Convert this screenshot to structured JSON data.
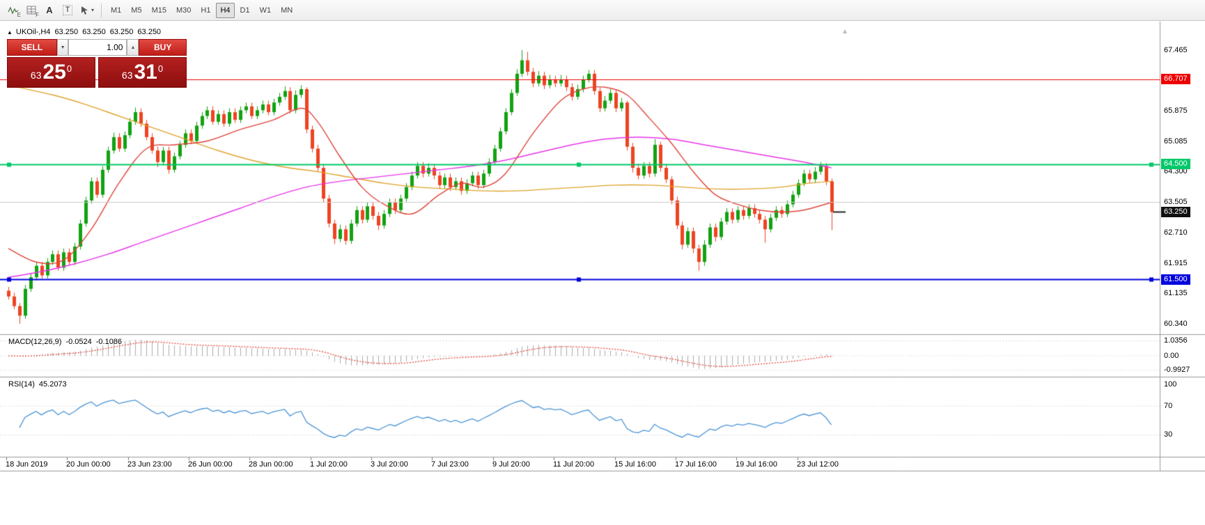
{
  "toolbar": {
    "timeframes": [
      "M1",
      "M5",
      "M15",
      "M30",
      "H1",
      "H4",
      "D1",
      "W1",
      "MN"
    ],
    "active_timeframe": "H4",
    "icon_labels": {
      "indicators_sub": "E",
      "grid_sub": "F",
      "text_a": "A",
      "text_t": "T",
      "cursor_caret": "▾"
    }
  },
  "chart_header": {
    "toggle_glyph": "▲",
    "symbol": "UKOil-,H4",
    "open": "63.250",
    "high": "63.250",
    "low": "63.250",
    "close": "63.250"
  },
  "trade_panel": {
    "sell_label": "SELL",
    "buy_label": "BUY",
    "volume": "1.00",
    "down_glyph": "▼",
    "up_glyph": "▲",
    "bid": {
      "prefix": "63",
      "big": "25",
      "pip": "0"
    },
    "ask": {
      "prefix": "63",
      "big": "31",
      "pip": "0"
    }
  },
  "price_axis": {
    "ticks": [
      67.465,
      65.875,
      65.085,
      64.3,
      63.505,
      62.71,
      61.915,
      61.135,
      60.34
    ],
    "tick_labels": [
      "67.465",
      "65.875",
      "65.085",
      "64.300",
      "63.505",
      "62.710",
      "61.915",
      "61.135",
      "60.340"
    ]
  },
  "levels": [
    {
      "price": 66.707,
      "label": "66.707",
      "color": "#EE0000",
      "width": 1,
      "badge": true,
      "handles": false
    },
    {
      "price": 64.5,
      "label": "64.500",
      "color": "#00C868",
      "width": 2,
      "badge": true,
      "handles": true
    },
    {
      "price": 63.505,
      "label": "",
      "color": "#CCCCCC",
      "width": 1,
      "badge": false,
      "handles": false
    },
    {
      "price": 61.5,
      "label": "61.500",
      "color": "#0000DD",
      "width": 2,
      "badge": true,
      "handles": true
    }
  ],
  "current_price": {
    "price": 63.25,
    "label": "63.250",
    "badge_color": "#111111"
  },
  "indicators": {
    "macd": {
      "label": "MACD(12,26,9)",
      "value": "-0.0524",
      "signal_value": "-0.1086",
      "fast": 12,
      "slow": 26,
      "signal": 9,
      "axis": {
        "values": [
          1.0356,
          0,
          -0.9927
        ],
        "labels": [
          "1.0356",
          "0.00",
          "-0.9927"
        ]
      },
      "hist_color": "#ACACAC",
      "signal_color": "#E23A2E"
    },
    "rsi": {
      "label": "RSI(14)",
      "value": "45.2073",
      "period": 14,
      "levels": [
        70,
        30
      ],
      "axis": {
        "values": [
          100,
          70,
          30
        ],
        "labels": [
          "100",
          "70",
          "30"
        ]
      },
      "line_color": "#4A94D6"
    }
  },
  "colors": {
    "candle_up": "#12A212",
    "candle_down": "#EE4422",
    "panel_border": "#9A9A9A",
    "grid_dotted": "#C4C4C4",
    "current_dash": "#222222",
    "autoscroll_marker": "#B8B8B8"
  },
  "chart_data": {
    "type": "candlestick",
    "symbol": "UKOil-",
    "timeframe": "H4",
    "ylim": [
      60.34,
      67.465
    ],
    "x_labels": [
      "18 Jun 2019",
      "20 Jun 00:00",
      "23 Jun 23:00",
      "26 Jun 00:00",
      "28 Jun 00:00",
      "1 Jul 20:00",
      "3 Jul 20:00",
      "7 Jul 23:00",
      "9 Jul 20:00",
      "11 Jul 20:00",
      "15 Jul 16:00",
      "17 Jul 16:00",
      "19 Jul 16:00",
      "23 Jul 12:00"
    ],
    "candles": [
      [
        61.2,
        61.3,
        60.97,
        61.05
      ],
      [
        61.05,
        61.15,
        60.72,
        60.8
      ],
      [
        60.8,
        60.88,
        60.34,
        60.55
      ],
      [
        60.55,
        61.35,
        60.47,
        61.25
      ],
      [
        61.25,
        61.65,
        61.17,
        61.55
      ],
      [
        61.55,
        61.95,
        61.47,
        61.85
      ],
      [
        61.85,
        61.95,
        61.52,
        61.6
      ],
      [
        61.6,
        62.05,
        61.52,
        61.95
      ],
      [
        61.95,
        62.25,
        61.87,
        62.15
      ],
      [
        62.15,
        62.25,
        61.72,
        61.8
      ],
      [
        61.8,
        62.3,
        61.72,
        62.2
      ],
      [
        62.2,
        62.3,
        61.87,
        61.95
      ],
      [
        61.95,
        62.45,
        61.87,
        62.35
      ],
      [
        62.35,
        63.05,
        62.27,
        62.95
      ],
      [
        62.95,
        63.65,
        62.87,
        63.55
      ],
      [
        63.55,
        64.15,
        63.47,
        64.05
      ],
      [
        64.05,
        64.15,
        63.62,
        63.7
      ],
      [
        63.7,
        64.45,
        63.62,
        64.35
      ],
      [
        64.35,
        64.95,
        64.27,
        64.85
      ],
      [
        64.85,
        65.32,
        64.77,
        65.2
      ],
      [
        65.2,
        65.3,
        64.82,
        64.9
      ],
      [
        64.9,
        65.35,
        64.82,
        65.25
      ],
      [
        65.25,
        65.7,
        65.17,
        65.6
      ],
      [
        65.6,
        65.97,
        65.52,
        65.85
      ],
      [
        65.85,
        65.95,
        65.47,
        65.55
      ],
      [
        65.55,
        65.65,
        65.12,
        65.2
      ],
      [
        65.2,
        65.3,
        64.77,
        64.85
      ],
      [
        64.85,
        64.95,
        64.42,
        64.55
      ],
      [
        64.55,
        64.95,
        64.47,
        64.85
      ],
      [
        64.85,
        64.95,
        64.25,
        64.35
      ],
      [
        64.35,
        64.8,
        64.27,
        64.7
      ],
      [
        64.7,
        65.1,
        64.62,
        65.0
      ],
      [
        65.0,
        65.4,
        64.92,
        65.3
      ],
      [
        65.3,
        65.4,
        65.02,
        65.1
      ],
      [
        65.1,
        65.6,
        65.02,
        65.5
      ],
      [
        65.5,
        65.85,
        65.42,
        65.75
      ],
      [
        65.75,
        66.0,
        65.67,
        65.9
      ],
      [
        65.9,
        66.0,
        65.52,
        65.6
      ],
      [
        65.6,
        65.9,
        65.52,
        65.8
      ],
      [
        65.8,
        65.9,
        65.47,
        65.55
      ],
      [
        65.55,
        65.95,
        65.47,
        65.85
      ],
      [
        65.85,
        65.95,
        65.57,
        65.65
      ],
      [
        65.65,
        66.0,
        65.57,
        65.9
      ],
      [
        65.9,
        66.1,
        65.82,
        66.0
      ],
      [
        66.0,
        66.1,
        65.67,
        65.75
      ],
      [
        65.75,
        66.0,
        65.67,
        65.9
      ],
      [
        65.9,
        66.15,
        65.82,
        66.05
      ],
      [
        66.05,
        66.15,
        65.77,
        65.85
      ],
      [
        65.85,
        66.2,
        65.77,
        66.1
      ],
      [
        66.1,
        66.35,
        66.02,
        66.25
      ],
      [
        66.25,
        66.52,
        66.17,
        66.4
      ],
      [
        66.4,
        66.5,
        65.82,
        65.9
      ],
      [
        65.9,
        66.42,
        65.82,
        66.3
      ],
      [
        66.3,
        66.55,
        66.22,
        66.45
      ],
      [
        66.45,
        66.5,
        65.3,
        65.4
      ],
      [
        65.4,
        65.5,
        64.8,
        64.9
      ],
      [
        64.9,
        65.0,
        64.3,
        64.4
      ],
      [
        64.4,
        64.5,
        63.5,
        63.6
      ],
      [
        63.6,
        63.7,
        62.85,
        62.95
      ],
      [
        62.95,
        63.05,
        62.42,
        62.55
      ],
      [
        62.55,
        62.92,
        62.47,
        62.8
      ],
      [
        62.8,
        62.9,
        62.4,
        62.5
      ],
      [
        62.5,
        63.05,
        62.42,
        62.95
      ],
      [
        62.95,
        63.4,
        62.87,
        63.3
      ],
      [
        63.3,
        63.4,
        62.95,
        63.05
      ],
      [
        63.05,
        63.5,
        62.97,
        63.4
      ],
      [
        63.4,
        63.5,
        63.05,
        63.15
      ],
      [
        63.15,
        63.25,
        62.78,
        62.9
      ],
      [
        62.9,
        63.3,
        62.82,
        63.2
      ],
      [
        63.2,
        63.6,
        63.12,
        63.5
      ],
      [
        63.5,
        63.6,
        63.2,
        63.3
      ],
      [
        63.3,
        63.7,
        63.22,
        63.6
      ],
      [
        63.6,
        64.0,
        63.52,
        63.9
      ],
      [
        63.9,
        64.3,
        63.82,
        64.2
      ],
      [
        64.2,
        64.55,
        64.12,
        64.45
      ],
      [
        64.45,
        64.55,
        64.15,
        64.25
      ],
      [
        64.25,
        64.52,
        64.17,
        64.4
      ],
      [
        64.4,
        64.5,
        64.1,
        64.2
      ],
      [
        64.2,
        64.3,
        63.85,
        63.95
      ],
      [
        63.95,
        64.25,
        63.87,
        64.15
      ],
      [
        64.15,
        64.25,
        63.8,
        63.9
      ],
      [
        63.9,
        64.15,
        63.82,
        64.05
      ],
      [
        64.05,
        64.15,
        63.7,
        63.8
      ],
      [
        63.8,
        64.1,
        63.72,
        64.0
      ],
      [
        64.0,
        64.3,
        63.92,
        64.2
      ],
      [
        64.2,
        64.3,
        63.85,
        63.95
      ],
      [
        63.95,
        64.35,
        63.87,
        64.25
      ],
      [
        64.25,
        64.65,
        64.17,
        64.55
      ],
      [
        64.55,
        65.0,
        64.47,
        64.9
      ],
      [
        64.9,
        65.45,
        64.82,
        65.35
      ],
      [
        65.35,
        65.95,
        65.27,
        65.85
      ],
      [
        65.85,
        66.45,
        65.77,
        66.35
      ],
      [
        66.35,
        66.97,
        66.27,
        66.85
      ],
      [
        66.85,
        67.465,
        66.77,
        67.2
      ],
      [
        67.2,
        67.42,
        66.8,
        66.9
      ],
      [
        66.9,
        67.0,
        66.5,
        66.6
      ],
      [
        66.6,
        66.92,
        66.52,
        66.8
      ],
      [
        66.8,
        66.9,
        66.45,
        66.55
      ],
      [
        66.55,
        66.82,
        66.47,
        66.7
      ],
      [
        66.7,
        66.8,
        66.5,
        66.6
      ],
      [
        66.6,
        66.82,
        66.52,
        66.7
      ],
      [
        66.7,
        66.8,
        66.4,
        66.5
      ],
      [
        66.5,
        66.6,
        66.15,
        66.25
      ],
      [
        66.25,
        66.57,
        66.17,
        66.45
      ],
      [
        66.45,
        66.8,
        66.37,
        66.7
      ],
      [
        66.7,
        66.95,
        66.62,
        66.85
      ],
      [
        66.85,
        66.95,
        66.3,
        66.4
      ],
      [
        66.4,
        66.5,
        65.85,
        65.95
      ],
      [
        65.95,
        66.27,
        65.87,
        66.15
      ],
      [
        66.15,
        66.45,
        66.07,
        66.35
      ],
      [
        66.35,
        66.45,
        65.85,
        65.95
      ],
      [
        65.95,
        66.22,
        65.87,
        66.1
      ],
      [
        66.1,
        66.15,
        64.85,
        64.95
      ],
      [
        64.95,
        65.05,
        64.28,
        64.4
      ],
      [
        64.4,
        64.5,
        64.1,
        64.2
      ],
      [
        64.2,
        64.55,
        64.12,
        64.45
      ],
      [
        64.45,
        64.55,
        64.15,
        64.25
      ],
      [
        64.25,
        65.15,
        64.17,
        65.0
      ],
      [
        65.0,
        65.08,
        64.3,
        64.4
      ],
      [
        64.4,
        64.5,
        64.0,
        64.1
      ],
      [
        64.1,
        64.18,
        63.45,
        63.55
      ],
      [
        63.55,
        63.65,
        62.8,
        62.9
      ],
      [
        62.9,
        63.0,
        62.28,
        62.4
      ],
      [
        62.4,
        62.85,
        62.32,
        62.75
      ],
      [
        62.75,
        62.85,
        62.18,
        62.3
      ],
      [
        62.3,
        62.4,
        61.72,
        61.95
      ],
      [
        61.95,
        62.52,
        61.85,
        62.4
      ],
      [
        62.4,
        62.95,
        62.32,
        62.85
      ],
      [
        62.85,
        62.95,
        62.48,
        62.6
      ],
      [
        62.6,
        63.1,
        62.52,
        63.0
      ],
      [
        63.0,
        63.35,
        62.92,
        63.25
      ],
      [
        63.25,
        63.35,
        62.95,
        63.05
      ],
      [
        63.05,
        63.4,
        62.97,
        63.3
      ],
      [
        63.3,
        63.4,
        63.05,
        63.15
      ],
      [
        63.15,
        63.45,
        63.07,
        63.35
      ],
      [
        63.35,
        63.45,
        63.1,
        63.2
      ],
      [
        63.2,
        63.3,
        62.95,
        63.05
      ],
      [
        63.05,
        63.15,
        62.45,
        62.8
      ],
      [
        62.8,
        63.2,
        62.72,
        63.1
      ],
      [
        63.1,
        63.4,
        63.02,
        63.3
      ],
      [
        63.3,
        63.4,
        63.1,
        63.2
      ],
      [
        63.2,
        63.55,
        63.12,
        63.45
      ],
      [
        63.45,
        63.8,
        63.37,
        63.7
      ],
      [
        63.7,
        64.1,
        63.62,
        64.0
      ],
      [
        64.0,
        64.35,
        63.92,
        64.25
      ],
      [
        64.25,
        64.35,
        64.0,
        64.1
      ],
      [
        64.1,
        64.42,
        64.02,
        64.3
      ],
      [
        64.3,
        64.55,
        64.22,
        64.45
      ],
      [
        64.45,
        64.52,
        63.95,
        64.05
      ],
      [
        64.05,
        64.12,
        62.78,
        63.25
      ]
    ],
    "moving_averages": [
      {
        "name": "ma-medium",
        "color": "#DFA32B",
        "points": [
          [
            0,
            66.55
          ],
          [
            8,
            66.3
          ],
          [
            14,
            66.05
          ],
          [
            20,
            65.75
          ],
          [
            26,
            65.45
          ],
          [
            32,
            65.15
          ],
          [
            38,
            64.85
          ],
          [
            44,
            64.6
          ],
          [
            50,
            64.42
          ],
          [
            56,
            64.3
          ],
          [
            62,
            64.15
          ],
          [
            68,
            64.0
          ],
          [
            74,
            63.9
          ],
          [
            80,
            63.85
          ],
          [
            86,
            63.8
          ],
          [
            92,
            63.8
          ],
          [
            98,
            63.85
          ],
          [
            104,
            63.9
          ],
          [
            110,
            63.95
          ],
          [
            116,
            63.95
          ],
          [
            122,
            63.9
          ],
          [
            128,
            63.85
          ],
          [
            134,
            63.85
          ],
          [
            140,
            63.9
          ],
          [
            145,
            64.0
          ],
          [
            149,
            64.05
          ]
        ]
      },
      {
        "name": "ma-slow",
        "color": "#E935E9",
        "points": [
          [
            0,
            61.55
          ],
          [
            6,
            61.7
          ],
          [
            12,
            61.9
          ],
          [
            18,
            62.15
          ],
          [
            24,
            62.45
          ],
          [
            30,
            62.75
          ],
          [
            36,
            63.05
          ],
          [
            42,
            63.35
          ],
          [
            48,
            63.65
          ],
          [
            54,
            63.9
          ],
          [
            60,
            64.05
          ],
          [
            66,
            64.15
          ],
          [
            72,
            64.25
          ],
          [
            78,
            64.35
          ],
          [
            84,
            64.45
          ],
          [
            90,
            64.6
          ],
          [
            96,
            64.8
          ],
          [
            102,
            65.0
          ],
          [
            108,
            65.15
          ],
          [
            114,
            65.2
          ],
          [
            120,
            65.15
          ],
          [
            126,
            65.0
          ],
          [
            132,
            64.85
          ],
          [
            138,
            64.7
          ],
          [
            144,
            64.55
          ],
          [
            149,
            64.4
          ]
        ]
      },
      {
        "name": "ma-fast",
        "color": "#E0443A",
        "points": [
          [
            0,
            62.3
          ],
          [
            5,
            61.95
          ],
          [
            10,
            62.0
          ],
          [
            15,
            62.8
          ],
          [
            20,
            64.0
          ],
          [
            25,
            64.9
          ],
          [
            30,
            65.0
          ],
          [
            36,
            65.1
          ],
          [
            42,
            65.4
          ],
          [
            48,
            65.65
          ],
          [
            53,
            65.95
          ],
          [
            56,
            65.6
          ],
          [
            60,
            64.7
          ],
          [
            64,
            63.9
          ],
          [
            68,
            63.45
          ],
          [
            73,
            63.2
          ],
          [
            78,
            63.7
          ],
          [
            82,
            64.0
          ],
          [
            86,
            63.9
          ],
          [
            90,
            64.25
          ],
          [
            95,
            65.3
          ],
          [
            100,
            66.15
          ],
          [
            104,
            66.45
          ],
          [
            108,
            66.5
          ],
          [
            112,
            66.3
          ],
          [
            116,
            65.7
          ],
          [
            120,
            65.05
          ],
          [
            124,
            64.3
          ],
          [
            128,
            63.7
          ],
          [
            132,
            63.45
          ],
          [
            136,
            63.3
          ],
          [
            140,
            63.25
          ],
          [
            144,
            63.3
          ],
          [
            149,
            63.5
          ]
        ]
      }
    ]
  }
}
